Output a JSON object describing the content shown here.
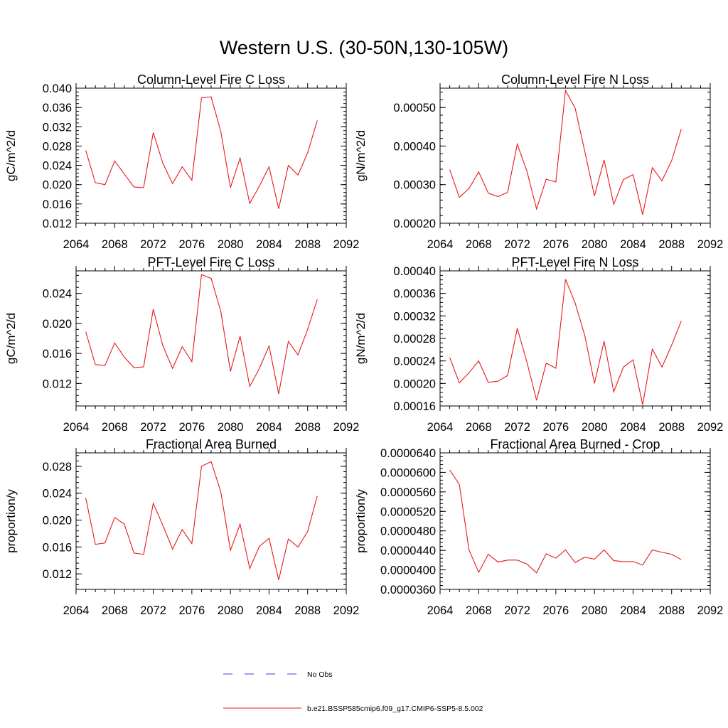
{
  "figure": {
    "title": "Western U.S. (30-50N,130-105W)",
    "legend": [
      {
        "label": "No Obs",
        "color": "#3b3bd6",
        "style": "dashed"
      },
      {
        "label": "b.e21.BSSP585cmip6.f09_g17.CMIP6-SSP5-8.5.002",
        "color": "#e8191b",
        "style": "solid"
      }
    ]
  },
  "chart_data": [
    {
      "type": "line",
      "title": "Column-Level Fire C Loss",
      "ylabel": "gC/m^2/d",
      "xlabel": "",
      "xlim": [
        2064,
        2092
      ],
      "ylim": [
        0.012,
        0.04
      ],
      "xticks": [
        "2064",
        "2068",
        "2072",
        "2076",
        "2080",
        "2084",
        "2088",
        "2092"
      ],
      "yticks": [
        "0.012",
        "0.016",
        "0.020",
        "0.024",
        "0.028",
        "0.032",
        "0.036",
        "0.040"
      ],
      "x": [
        2065,
        2066,
        2067,
        2068,
        2069,
        2070,
        2071,
        2072,
        2073,
        2074,
        2075,
        2076,
        2077,
        2078,
        2079,
        2080,
        2081,
        2082,
        2083,
        2084,
        2085,
        2086,
        2087,
        2088,
        2089
      ],
      "series": [
        {
          "color": "#e8191b",
          "values": [
            0.0271,
            0.0204,
            0.02,
            0.0249,
            0.0222,
            0.0195,
            0.0194,
            0.0308,
            0.0244,
            0.0202,
            0.0237,
            0.0209,
            0.038,
            0.0382,
            0.031,
            0.0194,
            0.0255,
            0.0161,
            0.0197,
            0.0237,
            0.015,
            0.024,
            0.022,
            0.0266,
            0.0333
          ]
        }
      ]
    },
    {
      "type": "line",
      "title": "Column-Level Fire N Loss",
      "ylabel": "gN/m^2/d",
      "xlabel": "",
      "xlim": [
        2064,
        2092
      ],
      "ylim": [
        0.0002,
        0.00055
      ],
      "xticks": [
        "2064",
        "2068",
        "2072",
        "2076",
        "2080",
        "2084",
        "2088",
        "2092"
      ],
      "yticks": [
        "0.00020",
        "0.00030",
        "0.00040",
        "0.00050"
      ],
      "x": [
        2065,
        2066,
        2067,
        2068,
        2069,
        2070,
        2071,
        2072,
        2073,
        2074,
        2075,
        2076,
        2077,
        2078,
        2079,
        2080,
        2081,
        2082,
        2083,
        2084,
        2085,
        2086,
        2087,
        2088,
        2089
      ],
      "series": [
        {
          "color": "#e8191b",
          "values": [
            0.000339,
            0.000267,
            0.00029,
            0.000333,
            0.000278,
            0.000269,
            0.00028,
            0.000405,
            0.000335,
            0.000237,
            0.000314,
            0.000307,
            0.000544,
            0.000498,
            0.000386,
            0.000271,
            0.000364,
            0.000249,
            0.000313,
            0.000326,
            0.000222,
            0.000344,
            0.00031,
            0.000362,
            0.000444
          ]
        }
      ]
    },
    {
      "type": "line",
      "title": "PFT-Level Fire C Loss",
      "ylabel": "gC/m^2/d",
      "xlabel": "",
      "xlim": [
        2064,
        2092
      ],
      "ylim": [
        0.009,
        0.027
      ],
      "xticks": [
        "2064",
        "2068",
        "2072",
        "2076",
        "2080",
        "2084",
        "2088",
        "2092"
      ],
      "yticks": [
        "0.012",
        "0.016",
        "0.020",
        "0.024"
      ],
      "x": [
        2065,
        2066,
        2067,
        2068,
        2069,
        2070,
        2071,
        2072,
        2073,
        2074,
        2075,
        2076,
        2077,
        2078,
        2079,
        2080,
        2081,
        2082,
        2083,
        2084,
        2085,
        2086,
        2087,
        2088,
        2089
      ],
      "series": [
        {
          "color": "#e8191b",
          "values": [
            0.0189,
            0.0145,
            0.0144,
            0.0174,
            0.0155,
            0.0141,
            0.0142,
            0.0219,
            0.017,
            0.014,
            0.0169,
            0.0149,
            0.0265,
            0.026,
            0.0216,
            0.0136,
            0.0183,
            0.0116,
            0.014,
            0.017,
            0.0106,
            0.0176,
            0.0158,
            0.0192,
            0.0232
          ]
        }
      ]
    },
    {
      "type": "line",
      "title": "PFT-Level Fire N Loss",
      "ylabel": "gN/m^2/d",
      "xlabel": "",
      "xlim": [
        2064,
        2092
      ],
      "ylim": [
        0.00016,
        0.0004
      ],
      "xticks": [
        "2064",
        "2068",
        "2072",
        "2076",
        "2080",
        "2084",
        "2088",
        "2092"
      ],
      "yticks": [
        "0.00016",
        "0.00020",
        "0.00024",
        "0.00028",
        "0.00032",
        "0.00036",
        "0.00040"
      ],
      "x": [
        2065,
        2066,
        2067,
        2068,
        2069,
        2070,
        2071,
        2072,
        2073,
        2074,
        2075,
        2076,
        2077,
        2078,
        2079,
        2080,
        2081,
        2082,
        2083,
        2084,
        2085,
        2086,
        2087,
        2088,
        2089
      ],
      "series": [
        {
          "color": "#e8191b",
          "values": [
            0.000246,
            0.000201,
            0.000219,
            0.00024,
            0.000202,
            0.000204,
            0.000214,
            0.000298,
            0.000238,
            0.00017,
            0.000236,
            0.000227,
            0.000385,
            0.000343,
            0.000285,
            0.0002,
            0.000275,
            0.000185,
            0.000229,
            0.000242,
            0.000162,
            0.000261,
            0.000229,
            0.000268,
            0.000311
          ]
        }
      ]
    },
    {
      "type": "line",
      "title": "Fractional Area Burned",
      "ylabel": "proportion/y",
      "xlabel": "",
      "xlim": [
        2064,
        2092
      ],
      "ylim": [
        0.0097,
        0.03
      ],
      "xticks": [
        "2064",
        "2068",
        "2072",
        "2076",
        "2080",
        "2084",
        "2088",
        "2092"
      ],
      "yticks": [
        "0.012",
        "0.016",
        "0.020",
        "0.024",
        "0.028"
      ],
      "x": [
        2065,
        2066,
        2067,
        2068,
        2069,
        2070,
        2071,
        2072,
        2073,
        2074,
        2075,
        2076,
        2077,
        2078,
        2079,
        2080,
        2081,
        2082,
        2083,
        2084,
        2085,
        2086,
        2087,
        2088,
        2089
      ],
      "series": [
        {
          "color": "#e8191b",
          "values": [
            0.0233,
            0.0164,
            0.0166,
            0.0204,
            0.0194,
            0.0151,
            0.0149,
            0.0225,
            0.0192,
            0.0157,
            0.0186,
            0.0165,
            0.028,
            0.0287,
            0.0242,
            0.0155,
            0.0194,
            0.0128,
            0.0161,
            0.0173,
            0.0111,
            0.0172,
            0.016,
            0.0183,
            0.0236
          ]
        }
      ]
    },
    {
      "type": "line",
      "title": "Fractional Area Burned - Crop",
      "ylabel": "proportion/y",
      "xlabel": "",
      "xlim": [
        2064,
        2092
      ],
      "ylim": [
        3.6e-05,
        6.4e-05
      ],
      "xticks": [
        "2064",
        "2068",
        "2072",
        "2076",
        "2080",
        "2084",
        "2088",
        "2092"
      ],
      "yticks": [
        "0.0000360",
        "0.0000400",
        "0.0000440",
        "0.0000480",
        "0.0000520",
        "0.0000560",
        "0.0000600",
        "0.0000640"
      ],
      "x": [
        2065,
        2066,
        2067,
        2068,
        2069,
        2070,
        2071,
        2072,
        2073,
        2074,
        2075,
        2076,
        2077,
        2078,
        2079,
        2080,
        2081,
        2082,
        2083,
        2084,
        2085,
        2086,
        2087,
        2088,
        2089
      ],
      "series": [
        {
          "color": "#e8191b",
          "values": [
            6.05e-05,
            5.75e-05,
            4.41e-05,
            3.95e-05,
            4.32e-05,
            4.16e-05,
            4.2e-05,
            4.2e-05,
            4.12e-05,
            3.94e-05,
            4.33e-05,
            4.24e-05,
            4.41e-05,
            4.15e-05,
            4.26e-05,
            4.22e-05,
            4.41e-05,
            4.19e-05,
            4.17e-05,
            4.17e-05,
            4.1e-05,
            4.41e-05,
            4.36e-05,
            4.32e-05,
            4.21e-05
          ]
        }
      ]
    }
  ]
}
